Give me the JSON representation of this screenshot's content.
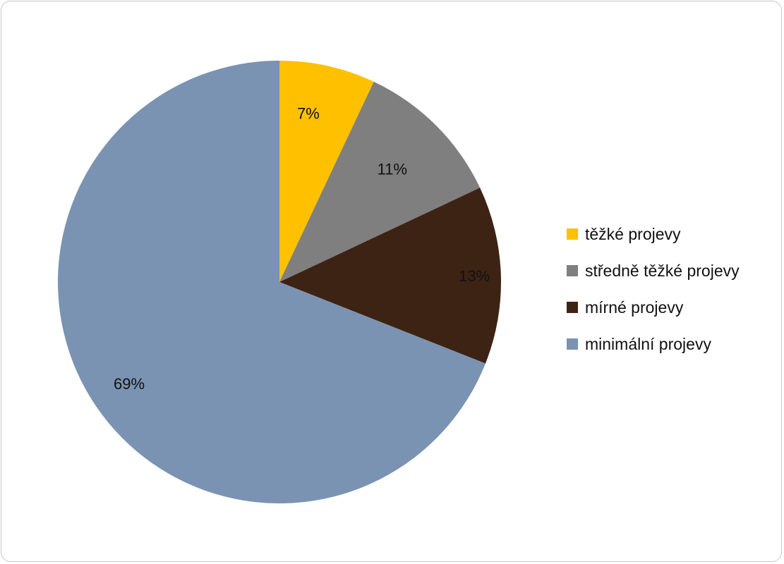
{
  "chart_data": {
    "type": "pie",
    "categories": [
      "těžké projevy",
      "středně těžké projevy",
      "mírné projevy",
      "minimální projevy"
    ],
    "values": [
      7,
      11,
      13,
      69
    ],
    "data_labels": [
      "7%",
      "11%",
      "13%",
      "69%"
    ],
    "colors": [
      "#FFC000",
      "#7F7F7F",
      "#3D2314",
      "#7A93B2"
    ],
    "legend_position": "right",
    "start_angle": "12 o'clock",
    "direction": "clockwise"
  }
}
